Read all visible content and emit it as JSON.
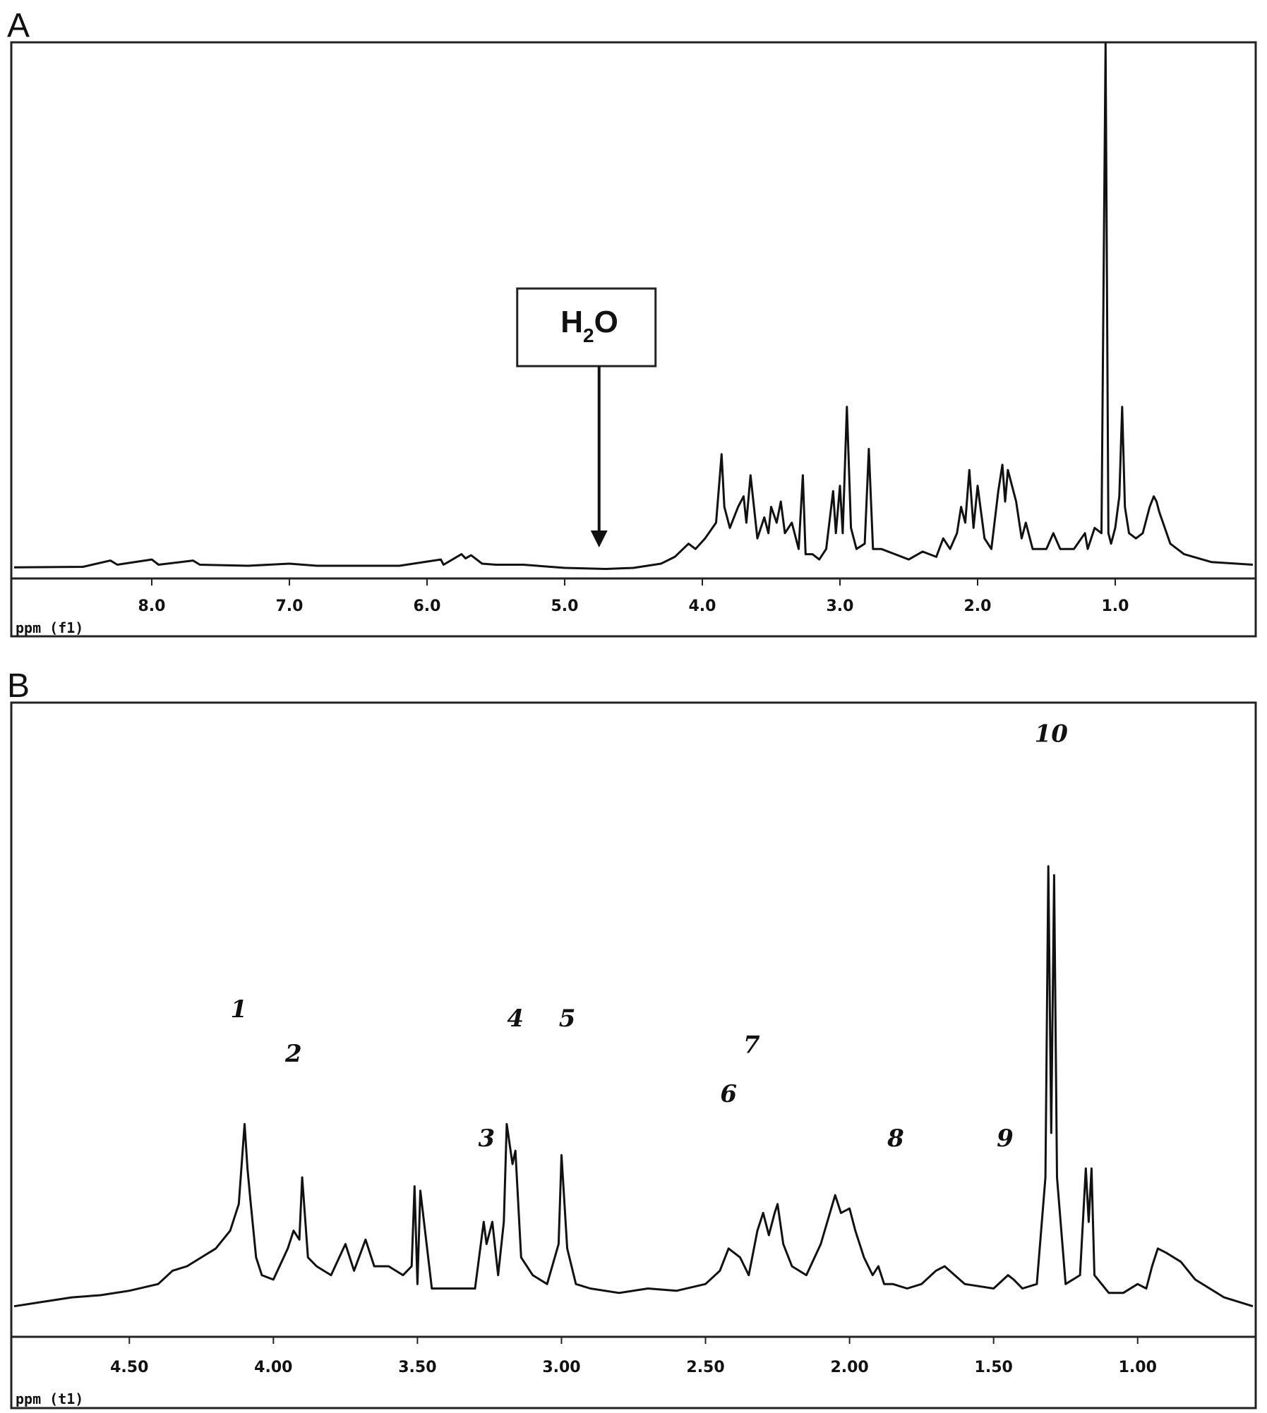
{
  "chart_data": [
    {
      "panel": "A",
      "type": "line",
      "xlabel": "ppm (f1)",
      "ylabel": "",
      "x_reversed": true,
      "xlim": [
        9.0,
        0.0
      ],
      "ylim": [
        0,
        1
      ],
      "x_ticks": [
        8.0,
        7.0,
        6.0,
        5.0,
        4.0,
        3.0,
        2.0,
        1.0
      ],
      "x_tick_labels": [
        "8.0",
        "7.0",
        "6.0",
        "5.0",
        "4.0",
        "3.0",
        "2.0",
        "1.0"
      ],
      "grid": false,
      "legend": "none",
      "series": [
        {
          "x": [
            9.0,
            8.5,
            8.3,
            8.25,
            8.2,
            8.0,
            7.95,
            7.7,
            7.65,
            7.3,
            7.0,
            6.8,
            6.5,
            6.2,
            5.9,
            5.88,
            5.75,
            5.72,
            5.68,
            5.6,
            5.5,
            5.3,
            5.0,
            4.7,
            4.5,
            4.3,
            4.2,
            4.1,
            4.05,
            3.98,
            3.9,
            3.86,
            3.84,
            3.8,
            3.74,
            3.7,
            3.68,
            3.65,
            3.6,
            3.55,
            3.52,
            3.5,
            3.46,
            3.43,
            3.4,
            3.35,
            3.3,
            3.27,
            3.25,
            3.2,
            3.15,
            3.1,
            3.05,
            3.03,
            3.0,
            2.98,
            2.95,
            2.92,
            2.88,
            2.82,
            2.79,
            2.76,
            2.7,
            2.6,
            2.5,
            2.4,
            2.3,
            2.25,
            2.2,
            2.15,
            2.12,
            2.09,
            2.06,
            2.03,
            2.0,
            1.95,
            1.9,
            1.85,
            1.82,
            1.8,
            1.78,
            1.72,
            1.68,
            1.65,
            1.6,
            1.5,
            1.45,
            1.4,
            1.3,
            1.22,
            1.2,
            1.15,
            1.1,
            1.07,
            1.05,
            1.03,
            1.0,
            0.97,
            0.95,
            0.93,
            0.9,
            0.85,
            0.8,
            0.75,
            0.72,
            0.7,
            0.68,
            0.6,
            0.5,
            0.3,
            0.0
          ],
          "y": [
            0.005,
            0.006,
            0.018,
            0.01,
            0.012,
            0.02,
            0.01,
            0.018,
            0.01,
            0.008,
            0.012,
            0.008,
            0.008,
            0.008,
            0.02,
            0.01,
            0.03,
            0.022,
            0.028,
            0.012,
            0.01,
            0.01,
            0.004,
            0.002,
            0.004,
            0.012,
            0.025,
            0.05,
            0.04,
            0.06,
            0.09,
            0.22,
            0.12,
            0.08,
            0.12,
            0.14,
            0.09,
            0.18,
            0.06,
            0.1,
            0.07,
            0.12,
            0.09,
            0.13,
            0.07,
            0.09,
            0.04,
            0.18,
            0.03,
            0.03,
            0.02,
            0.04,
            0.15,
            0.07,
            0.16,
            0.07,
            0.31,
            0.08,
            0.04,
            0.05,
            0.23,
            0.04,
            0.04,
            0.03,
            0.02,
            0.035,
            0.025,
            0.06,
            0.04,
            0.07,
            0.12,
            0.09,
            0.19,
            0.08,
            0.16,
            0.06,
            0.04,
            0.15,
            0.2,
            0.13,
            0.19,
            0.13,
            0.06,
            0.09,
            0.04,
            0.04,
            0.07,
            0.04,
            0.04,
            0.07,
            0.04,
            0.08,
            0.07,
            1.0,
            0.07,
            0.05,
            0.08,
            0.14,
            0.31,
            0.12,
            0.07,
            0.06,
            0.07,
            0.12,
            0.14,
            0.13,
            0.11,
            0.05,
            0.03,
            0.015,
            0.01
          ]
        }
      ],
      "annotation": {
        "text": "H",
        "subscript": "2",
        "text_end": "O",
        "x": 4.75
      }
    },
    {
      "panel": "B",
      "type": "line",
      "xlabel": "ppm (t1)",
      "ylabel": "",
      "x_reversed": true,
      "xlim": [
        4.9,
        0.6
      ],
      "ylim": [
        0,
        1
      ],
      "x_ticks": [
        4.5,
        4.0,
        3.5,
        3.0,
        2.5,
        2.0,
        1.5,
        1.0
      ],
      "x_tick_labels": [
        "4.50",
        "4.00",
        "3.50",
        "3.00",
        "2.50",
        "2.00",
        "1.50",
        "1.00"
      ],
      "grid": false,
      "legend": "none",
      "series": [
        {
          "x": [
            4.9,
            4.8,
            4.7,
            4.6,
            4.5,
            4.4,
            4.35,
            4.3,
            4.25,
            4.2,
            4.15,
            4.12,
            4.1,
            4.09,
            4.08,
            4.06,
            4.04,
            4.0,
            3.95,
            3.93,
            3.91,
            3.9,
            3.88,
            3.85,
            3.8,
            3.75,
            3.72,
            3.68,
            3.65,
            3.6,
            3.55,
            3.52,
            3.51,
            3.5,
            3.49,
            3.45,
            3.4,
            3.3,
            3.27,
            3.26,
            3.24,
            3.22,
            3.2,
            3.19,
            3.17,
            3.16,
            3.14,
            3.1,
            3.05,
            3.01,
            3.0,
            2.98,
            2.95,
            2.9,
            2.8,
            2.7,
            2.6,
            2.5,
            2.45,
            2.42,
            2.38,
            2.35,
            2.32,
            2.3,
            2.28,
            2.26,
            2.25,
            2.23,
            2.2,
            2.15,
            2.1,
            2.05,
            2.03,
            2.0,
            1.98,
            1.95,
            1.92,
            1.9,
            1.88,
            1.85,
            1.8,
            1.75,
            1.7,
            1.67,
            1.6,
            1.5,
            1.45,
            1.43,
            1.4,
            1.35,
            1.32,
            1.31,
            1.3,
            1.29,
            1.28,
            1.25,
            1.2,
            1.18,
            1.17,
            1.16,
            1.15,
            1.1,
            1.05,
            1.0,
            0.97,
            0.95,
            0.93,
            0.9,
            0.85,
            0.8,
            0.7,
            0.6
          ],
          "y": [
            0.01,
            0.02,
            0.03,
            0.035,
            0.045,
            0.06,
            0.09,
            0.1,
            0.12,
            0.14,
            0.18,
            0.24,
            0.42,
            0.32,
            0.25,
            0.12,
            0.08,
            0.07,
            0.14,
            0.18,
            0.16,
            0.3,
            0.12,
            0.1,
            0.08,
            0.15,
            0.09,
            0.16,
            0.1,
            0.1,
            0.08,
            0.1,
            0.28,
            0.06,
            0.27,
            0.05,
            0.05,
            0.05,
            0.2,
            0.15,
            0.2,
            0.08,
            0.2,
            0.42,
            0.33,
            0.36,
            0.12,
            0.08,
            0.06,
            0.15,
            0.35,
            0.14,
            0.06,
            0.05,
            0.04,
            0.05,
            0.045,
            0.06,
            0.09,
            0.14,
            0.12,
            0.08,
            0.18,
            0.22,
            0.17,
            0.22,
            0.24,
            0.15,
            0.1,
            0.08,
            0.15,
            0.26,
            0.22,
            0.23,
            0.18,
            0.12,
            0.08,
            0.1,
            0.06,
            0.06,
            0.05,
            0.06,
            0.09,
            0.1,
            0.06,
            0.05,
            0.08,
            0.07,
            0.05,
            0.06,
            0.3,
            1.0,
            0.4,
            0.98,
            0.3,
            0.06,
            0.08,
            0.32,
            0.2,
            0.32,
            0.08,
            0.04,
            0.04,
            0.06,
            0.05,
            0.1,
            0.14,
            0.13,
            0.11,
            0.07,
            0.03,
            0.01
          ]
        }
      ],
      "peak_labels": [
        {
          "text": "1",
          "x": 4.12,
          "y": 0.66
        },
        {
          "text": "2",
          "x": 3.93,
          "y": 0.56
        },
        {
          "text": "3",
          "x": 3.26,
          "y": 0.37
        },
        {
          "text": "4",
          "x": 3.16,
          "y": 0.64
        },
        {
          "text": "5",
          "x": 2.98,
          "y": 0.64
        },
        {
          "text": "6",
          "x": 2.42,
          "y": 0.47
        },
        {
          "text": "7",
          "x": 2.34,
          "y": 0.58
        },
        {
          "text": "8",
          "x": 1.84,
          "y": 0.37
        },
        {
          "text": "9",
          "x": 1.46,
          "y": 0.37
        },
        {
          "text": "10",
          "x": 1.3,
          "y": 1.28
        }
      ]
    }
  ],
  "panels": [
    "A",
    "B"
  ]
}
